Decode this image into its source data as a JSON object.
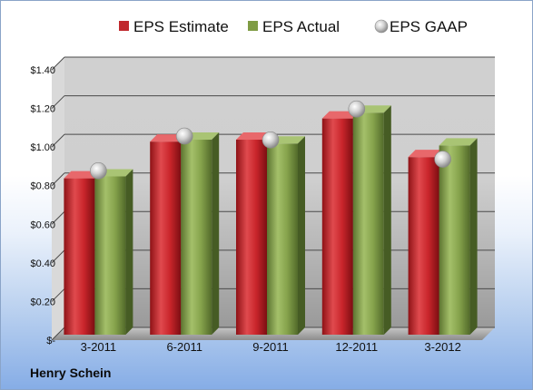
{
  "chart_data": {
    "type": "bar",
    "categories": [
      "3-2011",
      "6-2011",
      "9-2011",
      "12-2011",
      "3-2012"
    ],
    "series": [
      {
        "name": "EPS Estimate",
        "kind": "bar",
        "color": "#c0282d",
        "values": [
          0.81,
          1.0,
          1.01,
          1.12,
          0.92
        ]
      },
      {
        "name": "EPS Actual",
        "kind": "bar",
        "color": "#7f9c44",
        "values": [
          0.82,
          1.01,
          0.99,
          1.15,
          0.98
        ]
      },
      {
        "name": "EPS GAAP",
        "kind": "marker",
        "color": "#b9b9b9",
        "values": [
          0.83,
          1.01,
          0.99,
          1.15,
          0.89
        ]
      }
    ],
    "ylim": [
      0,
      1.4
    ],
    "yticks": [
      {
        "value": 0,
        "label": "$-"
      },
      {
        "value": 0.2,
        "label": "$0.20"
      },
      {
        "value": 0.4,
        "label": "$0.40"
      },
      {
        "value": 0.6,
        "label": "$0.60"
      },
      {
        "value": 0.8,
        "label": "$0.80"
      },
      {
        "value": 1.0,
        "label": "$1.00"
      },
      {
        "value": 1.2,
        "label": "$1.20"
      },
      {
        "value": 1.4,
        "label": "$1.40"
      }
    ],
    "grid": true,
    "legend_position": "top"
  },
  "footer": {
    "company": "Henry Schein"
  }
}
